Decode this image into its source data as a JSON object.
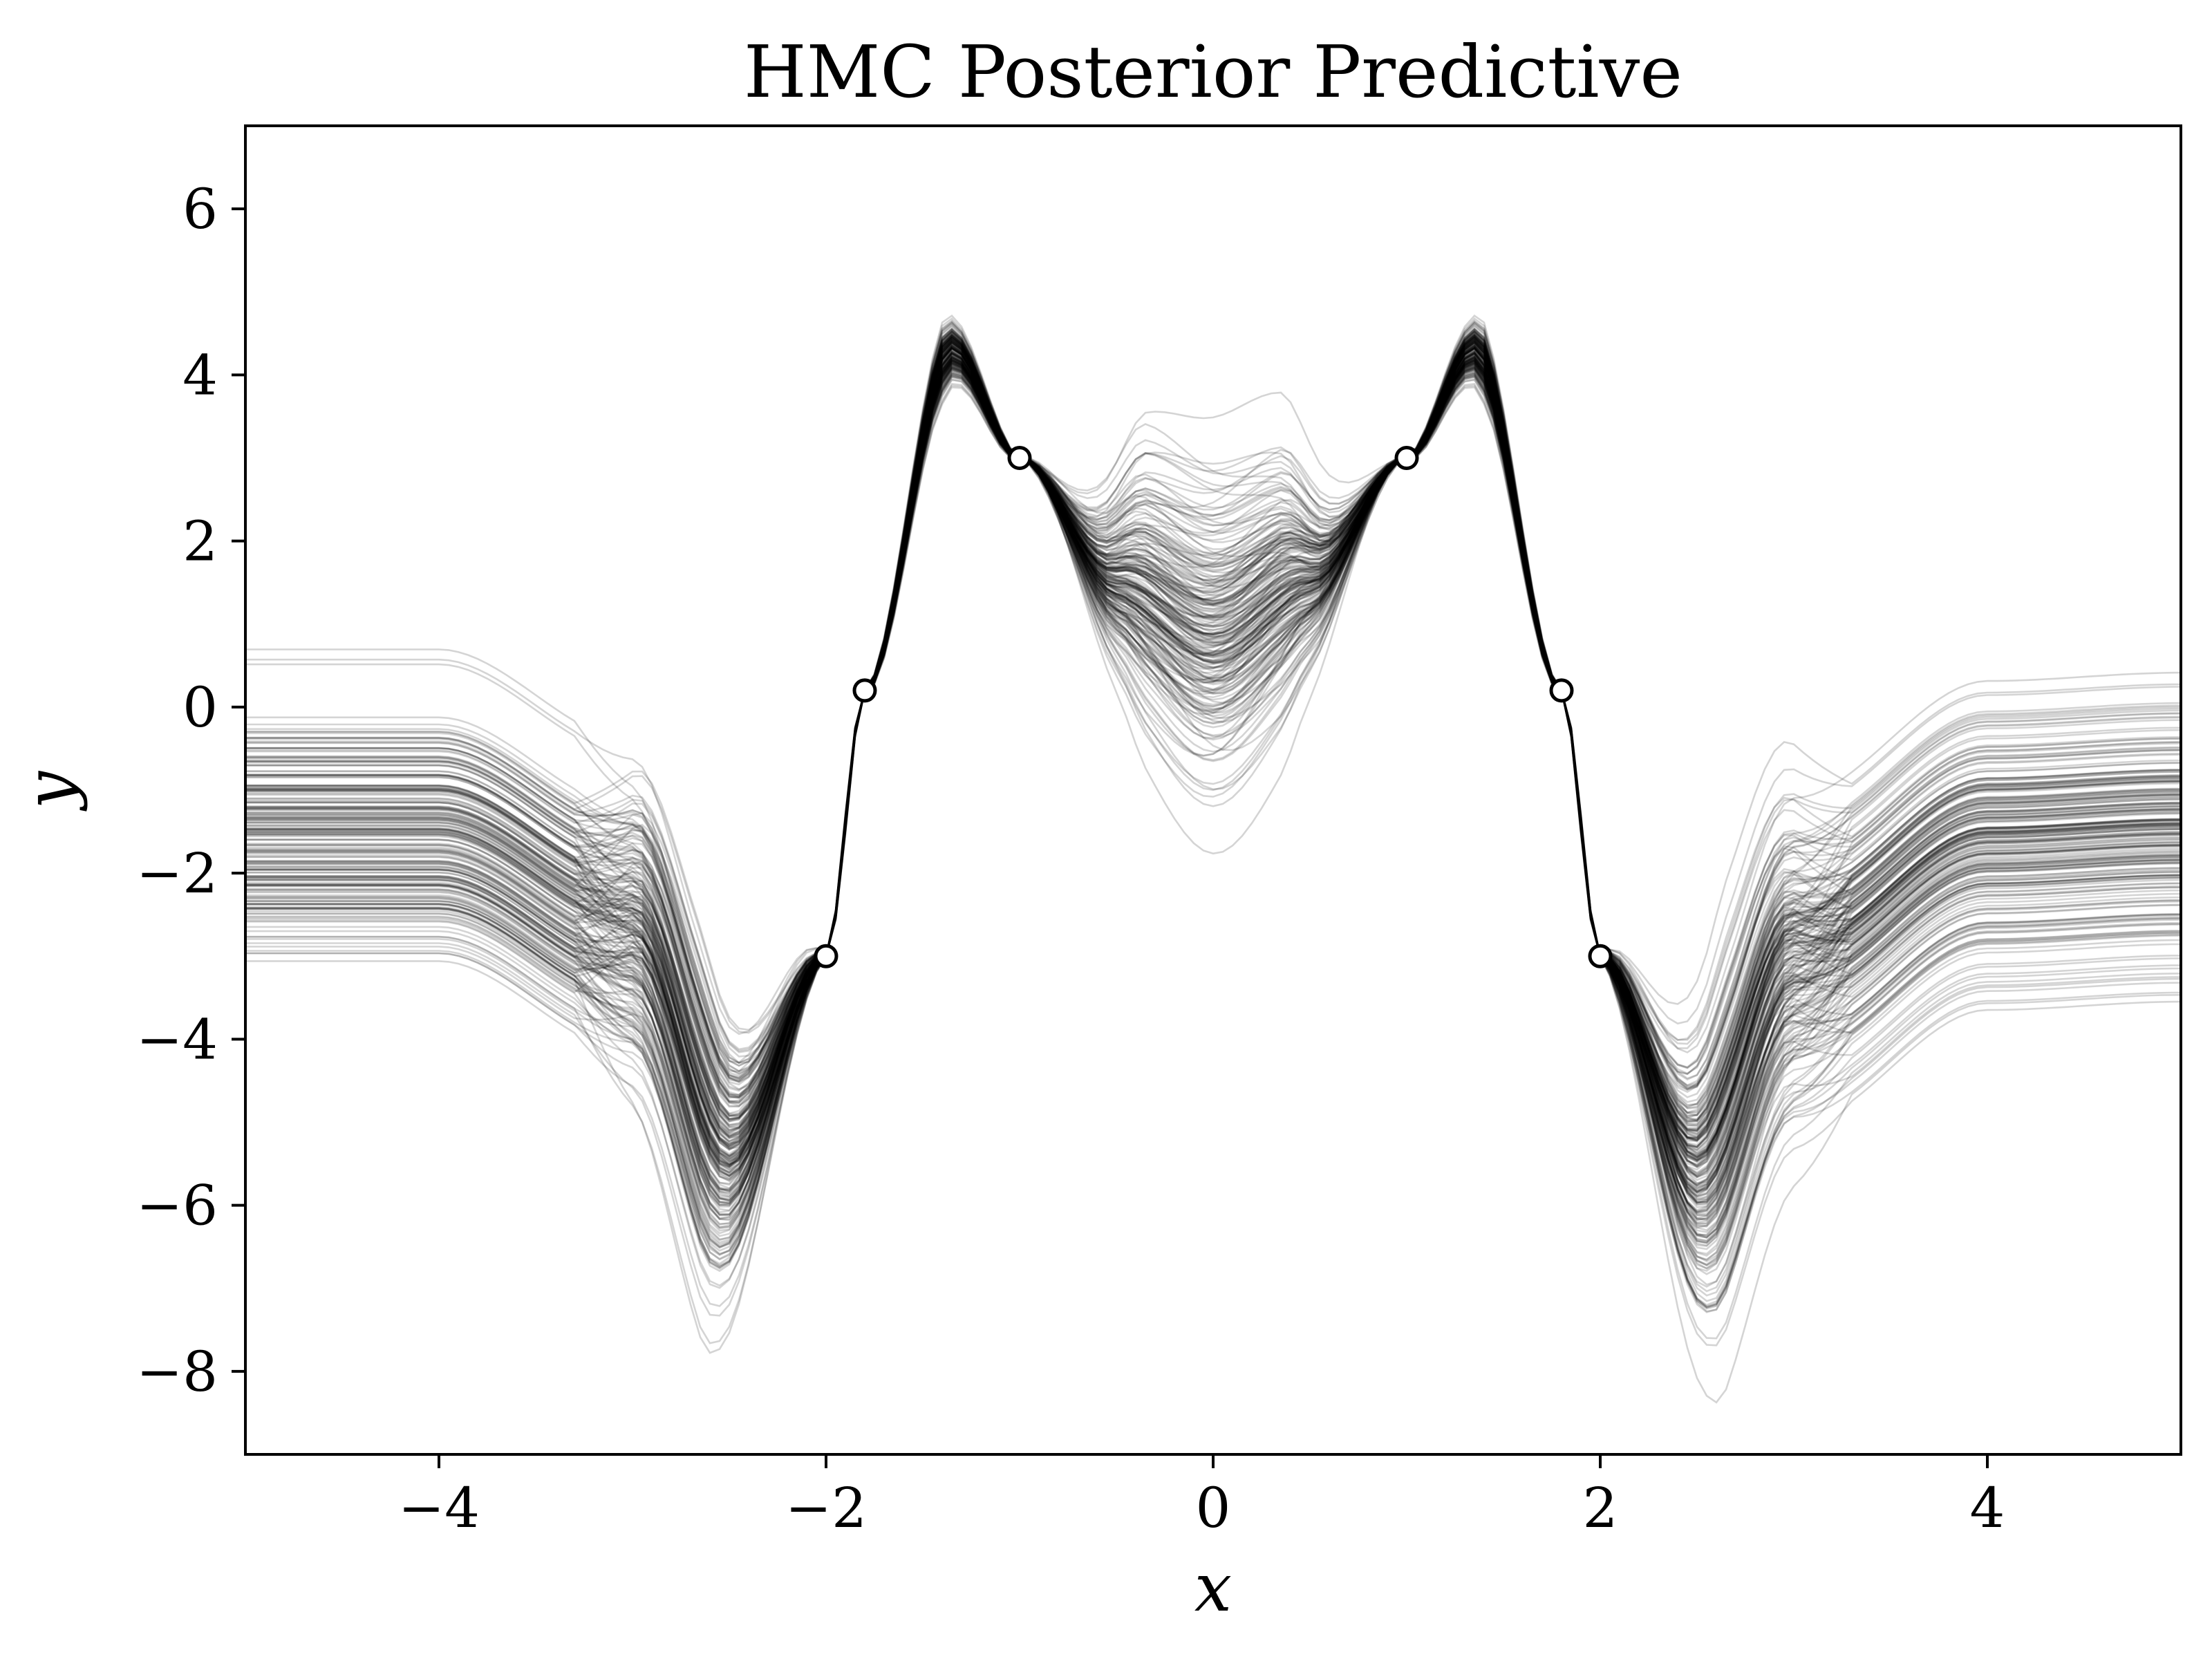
{
  "chart_data": {
    "type": "line",
    "title": "HMC Posterior Predictive",
    "xlabel": "x",
    "ylabel": "y",
    "xlim": [
      -5,
      5
    ],
    "ylim": [
      -9,
      7
    ],
    "x_ticks": [
      -4,
      -2,
      0,
      2,
      4
    ],
    "x_tick_labels": [
      "−4",
      "−2",
      "0",
      "2",
      "4"
    ],
    "y_ticks": [
      -8,
      -6,
      -4,
      -2,
      0,
      2,
      4,
      6
    ],
    "y_tick_labels": [
      "−8",
      "−6",
      "−4",
      "−2",
      "0",
      "2",
      "4",
      "6"
    ],
    "grid": false,
    "line_color": "#000000",
    "series": [
      {
        "values_description_x": [
          -5.0,
          -4.0,
          -3.0,
          -2.5,
          -2.0,
          -1.8,
          -1.35,
          -1.0,
          -0.5,
          0.0,
          0.5,
          1.0,
          1.35,
          1.8,
          2.0,
          2.5,
          3.0,
          4.0,
          5.0
        ],
        "x": [
          -5.0,
          -4.0,
          -3.0,
          -2.5,
          -2.0,
          -1.8,
          -1.35,
          -1.0,
          -0.5,
          0.0,
          0.5,
          1.0,
          1.35,
          1.8,
          2.0,
          2.5,
          3.0,
          4.0,
          5.0
        ],
        "y": [
          -1.5,
          -1.5,
          -2.6,
          -5.4,
          -3.0,
          0.2,
          4.3,
          3.0,
          1.5,
          0.8,
          1.5,
          3.0,
          4.3,
          0.2,
          -3.0,
          -5.6,
          -3.0,
          -1.6,
          -1.5
        ]
      }
    ],
    "observations": {
      "x": [
        -2.0,
        -1.8,
        -1.0,
        1.0,
        1.8,
        2.0
      ],
      "y": [
        -3.0,
        0.2,
        3.0,
        3.0,
        0.2,
        -3.0
      ]
    }
  }
}
